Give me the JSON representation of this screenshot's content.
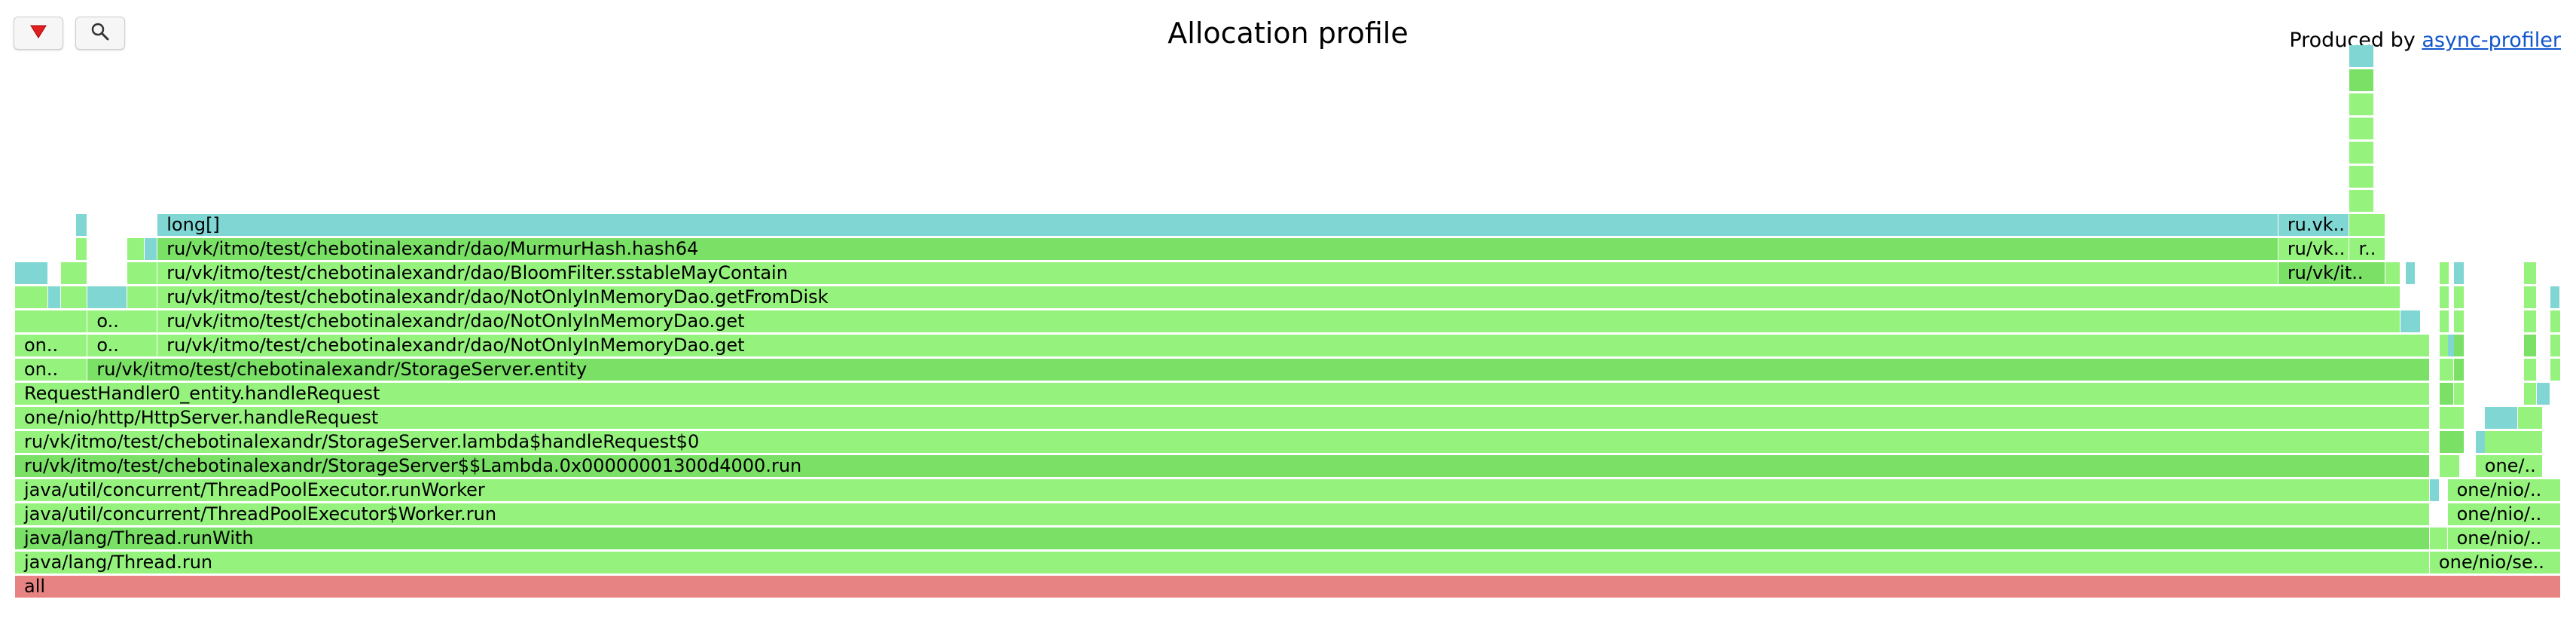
{
  "header": {
    "title": "Allocation profile",
    "produced_prefix": "Produced by ",
    "produced_link": "async-profiler"
  },
  "toolbar": {
    "reverse_icon": "reverse-triangle-icon",
    "search_icon": "magnifier-icon"
  },
  "colors": {
    "green_light": "#95f27d",
    "green_dark": "#7be066",
    "teal": "#7fd6d2",
    "root": "#e88383"
  },
  "frames": [
    {
      "label": "all",
      "level": 0,
      "x0": 0.0,
      "x1": 1.0,
      "c": "root"
    },
    {
      "label": "java/lang/Thread.run",
      "level": 1,
      "x0": 0.0,
      "x1": 0.9485,
      "c": "g"
    },
    {
      "label": "one/nio/se..",
      "level": 1,
      "x0": 0.9485,
      "x1": 1.0,
      "c": "g"
    },
    {
      "label": "java/lang/Thread.runWith",
      "level": 2,
      "x0": 0.0,
      "x1": 0.9485,
      "c": "d"
    },
    {
      "label": "",
      "level": 2,
      "x0": 0.9485,
      "x1": 0.9555,
      "c": "g"
    },
    {
      "label": "one/nio/..",
      "level": 2,
      "x0": 0.9555,
      "x1": 1.0,
      "c": "g"
    },
    {
      "label": "java/util/concurrent/ThreadPoolExecutor$Worker.run",
      "level": 3,
      "x0": 0.0,
      "x1": 0.9485,
      "c": "g"
    },
    {
      "label": "one/nio/..",
      "level": 3,
      "x0": 0.9555,
      "x1": 1.0,
      "c": "g"
    },
    {
      "label": "java/util/concurrent/ThreadPoolExecutor.runWorker",
      "level": 4,
      "x0": 0.0,
      "x1": 0.9485,
      "c": "g"
    },
    {
      "label": "",
      "level": 4,
      "x0": 0.9485,
      "x1": 0.9525,
      "c": "t"
    },
    {
      "label": "one/nio/..",
      "level": 4,
      "x0": 0.9555,
      "x1": 1.0,
      "c": "g"
    },
    {
      "label": "ru/vk/itmo/test/chebotinalexandr/StorageServer$$Lambda.0x00000001300d4000.run",
      "level": 5,
      "x0": 0.0,
      "x1": 0.9485,
      "c": "d"
    },
    {
      "label": "",
      "level": 5,
      "x0": 0.9525,
      "x1": 0.9605,
      "c": "g"
    },
    {
      "label": "one/..",
      "level": 5,
      "x0": 0.9665,
      "x1": 0.993,
      "c": "g"
    },
    {
      "label": "ru/vk/itmo/test/chebotinalexandr/StorageServer.lambda$handleRequest$0",
      "level": 6,
      "x0": 0.0,
      "x1": 0.9485,
      "c": "g"
    },
    {
      "label": "",
      "level": 6,
      "x0": 0.9525,
      "x1": 0.962,
      "c": "d"
    },
    {
      "label": "",
      "level": 6,
      "x0": 0.9665,
      "x1": 0.97,
      "c": "t"
    },
    {
      "label": "",
      "level": 6,
      "x0": 0.97,
      "x1": 0.993,
      "c": "g"
    },
    {
      "label": "one/nio/http/HttpServer.handleRequest",
      "level": 7,
      "x0": 0.0,
      "x1": 0.9485,
      "c": "g"
    },
    {
      "label": "",
      "level": 7,
      "x0": 0.9525,
      "x1": 0.962,
      "c": "g"
    },
    {
      "label": "",
      "level": 7,
      "x0": 0.97,
      "x1": 0.983,
      "c": "t"
    },
    {
      "label": "",
      "level": 7,
      "x0": 0.983,
      "x1": 0.993,
      "c": "g"
    },
    {
      "label": "RequestHandler0_entity.handleRequest",
      "level": 8,
      "x0": 0.0,
      "x1": 0.9485,
      "c": "g"
    },
    {
      "label": "",
      "level": 8,
      "x0": 0.9525,
      "x1": 0.958,
      "c": "d"
    },
    {
      "label": "",
      "level": 8,
      "x0": 0.958,
      "x1": 0.962,
      "c": "g"
    },
    {
      "label": "",
      "level": 8,
      "x0": 0.9855,
      "x1": 0.9905,
      "c": "g"
    },
    {
      "label": "",
      "level": 8,
      "x0": 0.9905,
      "x1": 0.996,
      "c": "t"
    },
    {
      "label": "on..",
      "level": 9,
      "x0": 0.0,
      "x1": 0.0285,
      "c": "g"
    },
    {
      "label": "ru/vk/itmo/test/chebotinalexandr/StorageServer.entity",
      "level": 9,
      "x0": 0.0285,
      "x1": 0.9485,
      "c": "d"
    },
    {
      "label": "",
      "level": 9,
      "x0": 0.9525,
      "x1": 0.958,
      "c": "g"
    },
    {
      "label": "",
      "level": 9,
      "x0": 0.958,
      "x1": 0.962,
      "c": "d"
    },
    {
      "label": "",
      "level": 9,
      "x0": 0.9855,
      "x1": 0.9905,
      "c": "g"
    },
    {
      "label": "",
      "level": 9,
      "x0": 0.996,
      "x1": 1.0,
      "c": "g"
    },
    {
      "label": "on..",
      "level": 10,
      "x0": 0.0,
      "x1": 0.0285,
      "c": "g"
    },
    {
      "label": "o..",
      "level": 10,
      "x0": 0.0285,
      "x1": 0.056,
      "c": "g"
    },
    {
      "label": "ru/vk/itmo/test/chebotinalexandr/dao/NotOnlyInMemoryDao.get",
      "level": 10,
      "x0": 0.056,
      "x1": 0.9485,
      "c": "g"
    },
    {
      "label": "",
      "level": 10,
      "x0": 0.9525,
      "x1": 0.9555,
      "c": "g"
    },
    {
      "label": "",
      "level": 10,
      "x0": 0.9555,
      "x1": 0.958,
      "c": "t"
    },
    {
      "label": "",
      "level": 10,
      "x0": 0.958,
      "x1": 0.962,
      "c": "d"
    },
    {
      "label": "",
      "level": 10,
      "x0": 0.9855,
      "x1": 0.9905,
      "c": "d"
    },
    {
      "label": "",
      "level": 10,
      "x0": 0.996,
      "x1": 1.0,
      "c": "g"
    },
    {
      "label": "",
      "level": 11,
      "x0": 0.0,
      "x1": 0.0285,
      "c": "g"
    },
    {
      "label": "o..",
      "level": 11,
      "x0": 0.0285,
      "x1": 0.056,
      "c": "g"
    },
    {
      "label": "ru/vk/itmo/test/chebotinalexandr/dao/NotOnlyInMemoryDao.get",
      "level": 11,
      "x0": 0.056,
      "x1": 0.937,
      "c": "g"
    },
    {
      "label": "",
      "level": 11,
      "x0": 0.937,
      "x1": 0.945,
      "c": "t"
    },
    {
      "label": "",
      "level": 11,
      "x0": 0.9525,
      "x1": 0.9555,
      "c": "g"
    },
    {
      "label": "",
      "level": 11,
      "x0": 0.958,
      "x1": 0.962,
      "c": "g"
    },
    {
      "label": "",
      "level": 11,
      "x0": 0.9855,
      "x1": 0.9905,
      "c": "g"
    },
    {
      "label": "",
      "level": 11,
      "x0": 0.996,
      "x1": 1.0,
      "c": "g"
    },
    {
      "label": "",
      "level": 12,
      "x0": 0.0,
      "x1": 0.013,
      "c": "g"
    },
    {
      "label": "",
      "level": 12,
      "x0": 0.013,
      "x1": 0.018,
      "c": "t"
    },
    {
      "label": "",
      "level": 12,
      "x0": 0.018,
      "x1": 0.0285,
      "c": "g"
    },
    {
      "label": "",
      "level": 12,
      "x0": 0.0285,
      "x1": 0.044,
      "c": "t"
    },
    {
      "label": "",
      "level": 12,
      "x0": 0.044,
      "x1": 0.056,
      "c": "g"
    },
    {
      "label": "ru/vk/itmo/test/chebotinalexandr/dao/NotOnlyInMemoryDao.getFromDisk",
      "level": 12,
      "x0": 0.056,
      "x1": 0.937,
      "c": "g"
    },
    {
      "label": "",
      "level": 12,
      "x0": 0.9525,
      "x1": 0.9555,
      "c": "g"
    },
    {
      "label": "",
      "level": 12,
      "x0": 0.958,
      "x1": 0.962,
      "c": "g"
    },
    {
      "label": "",
      "level": 12,
      "x0": 0.9855,
      "x1": 0.9905,
      "c": "g"
    },
    {
      "label": "",
      "level": 12,
      "x0": 0.996,
      "x1": 0.999,
      "c": "t"
    },
    {
      "label": "",
      "level": 13,
      "x0": 0.0,
      "x1": 0.013,
      "c": "t"
    },
    {
      "label": "",
      "level": 13,
      "x0": 0.018,
      "x1": 0.0285,
      "c": "g"
    },
    {
      "label": "",
      "level": 13,
      "x0": 0.044,
      "x1": 0.056,
      "c": "g"
    },
    {
      "label": "ru/vk/itmo/test/chebotinalexandr/dao/BloomFilter.sstableMayContain",
      "level": 13,
      "x0": 0.056,
      "x1": 0.889,
      "c": "g"
    },
    {
      "label": "ru/vk/it..",
      "level": 13,
      "x0": 0.889,
      "x1": 0.931,
      "c": "d"
    },
    {
      "label": "",
      "level": 13,
      "x0": 0.931,
      "x1": 0.937,
      "c": "g"
    },
    {
      "label": "",
      "level": 13,
      "x0": 0.939,
      "x1": 0.943,
      "c": "t"
    },
    {
      "label": "",
      "level": 13,
      "x0": 0.9525,
      "x1": 0.9555,
      "c": "g"
    },
    {
      "label": "",
      "level": 13,
      "x0": 0.958,
      "x1": 0.962,
      "c": "t"
    },
    {
      "label": "",
      "level": 13,
      "x0": 0.9855,
      "x1": 0.9905,
      "c": "g"
    },
    {
      "label": "",
      "level": 14,
      "x0": 0.024,
      "x1": 0.0285,
      "c": "g"
    },
    {
      "label": "",
      "level": 14,
      "x0": 0.044,
      "x1": 0.051,
      "c": "g"
    },
    {
      "label": "",
      "level": 14,
      "x0": 0.051,
      "x1": 0.056,
      "c": "t"
    },
    {
      "label": "ru/vk/itmo/test/chebotinalexandr/dao/MurmurHash.hash64",
      "level": 14,
      "x0": 0.056,
      "x1": 0.889,
      "c": "d"
    },
    {
      "label": "ru/vk..",
      "level": 14,
      "x0": 0.889,
      "x1": 0.917,
      "c": "g"
    },
    {
      "label": "r..",
      "level": 14,
      "x0": 0.917,
      "x1": 0.931,
      "c": "g"
    },
    {
      "label": "",
      "level": 15,
      "x0": 0.024,
      "x1": 0.0285,
      "c": "t"
    },
    {
      "label": "long[]",
      "level": 15,
      "x0": 0.056,
      "x1": 0.889,
      "c": "t"
    },
    {
      "label": "ru.vk..",
      "level": 15,
      "x0": 0.889,
      "x1": 0.917,
      "c": "t"
    },
    {
      "label": "",
      "level": 15,
      "x0": 0.917,
      "x1": 0.931,
      "c": "g"
    },
    {
      "label": "",
      "level": 16,
      "x0": 0.917,
      "x1": 0.9265,
      "c": "g"
    },
    {
      "label": "",
      "level": 17,
      "x0": 0.917,
      "x1": 0.9265,
      "c": "g"
    },
    {
      "label": "",
      "level": 18,
      "x0": 0.917,
      "x1": 0.9265,
      "c": "g"
    },
    {
      "label": "",
      "level": 19,
      "x0": 0.917,
      "x1": 0.9265,
      "c": "g"
    },
    {
      "label": "",
      "level": 20,
      "x0": 0.917,
      "x1": 0.9265,
      "c": "g"
    },
    {
      "label": "",
      "level": 21,
      "x0": 0.917,
      "x1": 0.9265,
      "c": "d"
    },
    {
      "label": "",
      "level": 22,
      "x0": 0.917,
      "x1": 0.9265,
      "c": "t"
    }
  ]
}
